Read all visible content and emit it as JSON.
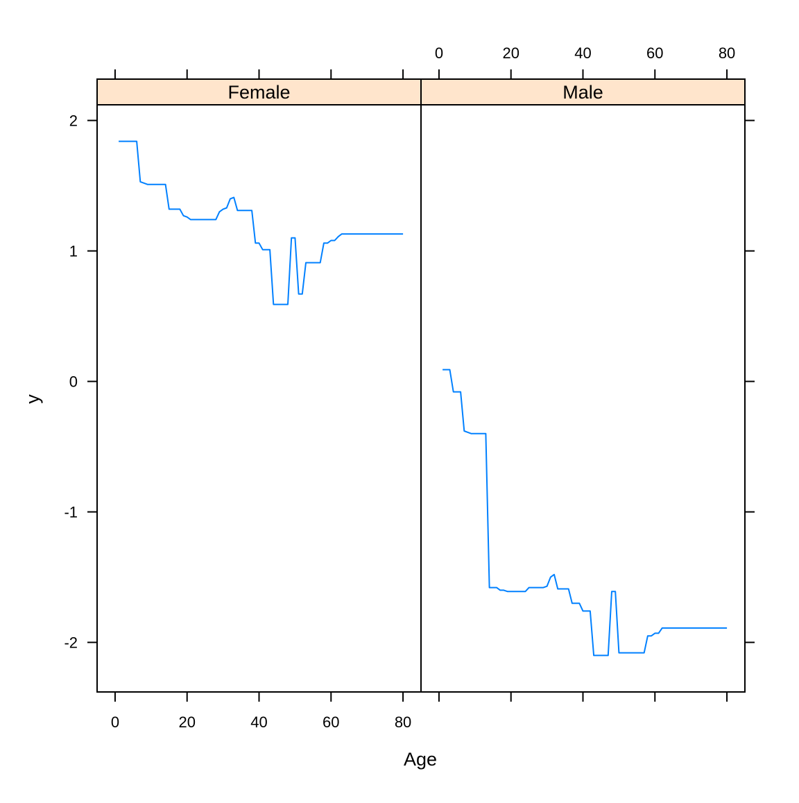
{
  "chart_data": {
    "type": "line",
    "layout": "trellis",
    "xlabel": "Age",
    "ylabel": "y",
    "xlim": [
      -5,
      85
    ],
    "ylim": [
      -2.38,
      2.12
    ],
    "xticks": [
      0,
      20,
      40,
      60,
      80
    ],
    "yticks": [
      -2,
      -1,
      0,
      1,
      2
    ],
    "strip_color": "#FFE5CC",
    "line_color": "#0080FF",
    "panels": [
      {
        "strip": "Female",
        "x": [
          1,
          2,
          3,
          4,
          5,
          6,
          7,
          8,
          9,
          10,
          11,
          12,
          13,
          14,
          15,
          16,
          17,
          18,
          19,
          20,
          21,
          22,
          23,
          24,
          25,
          26,
          27,
          28,
          29,
          30,
          31,
          32,
          33,
          34,
          35,
          36,
          37,
          38,
          39,
          40,
          41,
          42,
          43,
          44,
          45,
          46,
          47,
          48,
          49,
          50,
          51,
          52,
          53,
          54,
          55,
          56,
          57,
          58,
          59,
          60,
          61,
          62,
          63,
          64,
          65,
          70,
          75,
          80
        ],
        "y": [
          1.84,
          1.84,
          1.84,
          1.84,
          1.84,
          1.84,
          1.53,
          1.52,
          1.51,
          1.51,
          1.51,
          1.51,
          1.51,
          1.51,
          1.32,
          1.32,
          1.32,
          1.32,
          1.27,
          1.26,
          1.24,
          1.24,
          1.24,
          1.24,
          1.24,
          1.24,
          1.24,
          1.24,
          1.3,
          1.32,
          1.33,
          1.4,
          1.41,
          1.31,
          1.31,
          1.31,
          1.31,
          1.31,
          1.06,
          1.06,
          1.01,
          1.01,
          1.01,
          0.59,
          0.59,
          0.59,
          0.59,
          0.59,
          1.1,
          1.1,
          0.67,
          0.67,
          0.91,
          0.91,
          0.91,
          0.91,
          0.91,
          1.06,
          1.06,
          1.08,
          1.08,
          1.11,
          1.13,
          1.13,
          1.13,
          1.13,
          1.13,
          1.13
        ]
      },
      {
        "strip": "Male",
        "x": [
          1,
          2,
          3,
          4,
          5,
          6,
          7,
          8,
          9,
          10,
          11,
          12,
          13,
          14,
          15,
          16,
          17,
          18,
          19,
          20,
          21,
          22,
          23,
          24,
          25,
          26,
          27,
          28,
          29,
          30,
          31,
          32,
          33,
          34,
          35,
          36,
          37,
          38,
          39,
          40,
          41,
          42,
          43,
          44,
          45,
          46,
          47,
          48,
          49,
          50,
          51,
          52,
          53,
          54,
          55,
          56,
          57,
          58,
          59,
          60,
          61,
          62,
          63,
          64,
          65,
          70,
          75,
          80
        ],
        "y": [
          0.09,
          0.09,
          0.09,
          -0.08,
          -0.08,
          -0.08,
          -0.38,
          -0.39,
          -0.4,
          -0.4,
          -0.4,
          -0.4,
          -0.4,
          -1.58,
          -1.58,
          -1.58,
          -1.6,
          -1.6,
          -1.61,
          -1.61,
          -1.61,
          -1.61,
          -1.61,
          -1.61,
          -1.58,
          -1.58,
          -1.58,
          -1.58,
          -1.58,
          -1.57,
          -1.5,
          -1.48,
          -1.59,
          -1.59,
          -1.59,
          -1.59,
          -1.7,
          -1.7,
          -1.7,
          -1.76,
          -1.76,
          -1.76,
          -2.1,
          -2.1,
          -2.1,
          -2.1,
          -2.1,
          -1.61,
          -1.61,
          -2.08,
          -2.08,
          -2.08,
          -2.08,
          -2.08,
          -2.08,
          -2.08,
          -2.08,
          -1.95,
          -1.95,
          -1.93,
          -1.93,
          -1.89,
          -1.89,
          -1.89,
          -1.89,
          -1.89,
          -1.89,
          -1.89
        ]
      }
    ]
  }
}
